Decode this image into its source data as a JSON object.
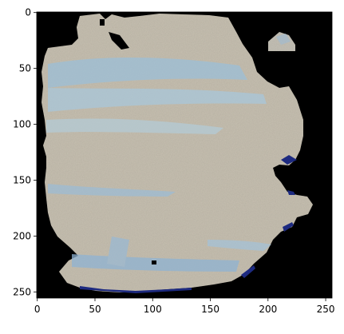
{
  "figure": {
    "type": "image-display (matplotlib imshow)",
    "x_axis": {
      "ticks": [
        0,
        50,
        100,
        150,
        200,
        250
      ],
      "range": [
        0,
        256
      ]
    },
    "y_axis": {
      "ticks": [
        0,
        50,
        100,
        150,
        200,
        250
      ],
      "range": [
        0,
        256
      ],
      "inverted": true
    },
    "image": {
      "description": "segmented photo of a pale beige fabric/paper patch with light blue streaks on a black background",
      "colors": {
        "background": "#000000",
        "patch": "#c9c2b3",
        "streak": "#8fb7d6",
        "edge": "#1f2f8a"
      }
    }
  }
}
